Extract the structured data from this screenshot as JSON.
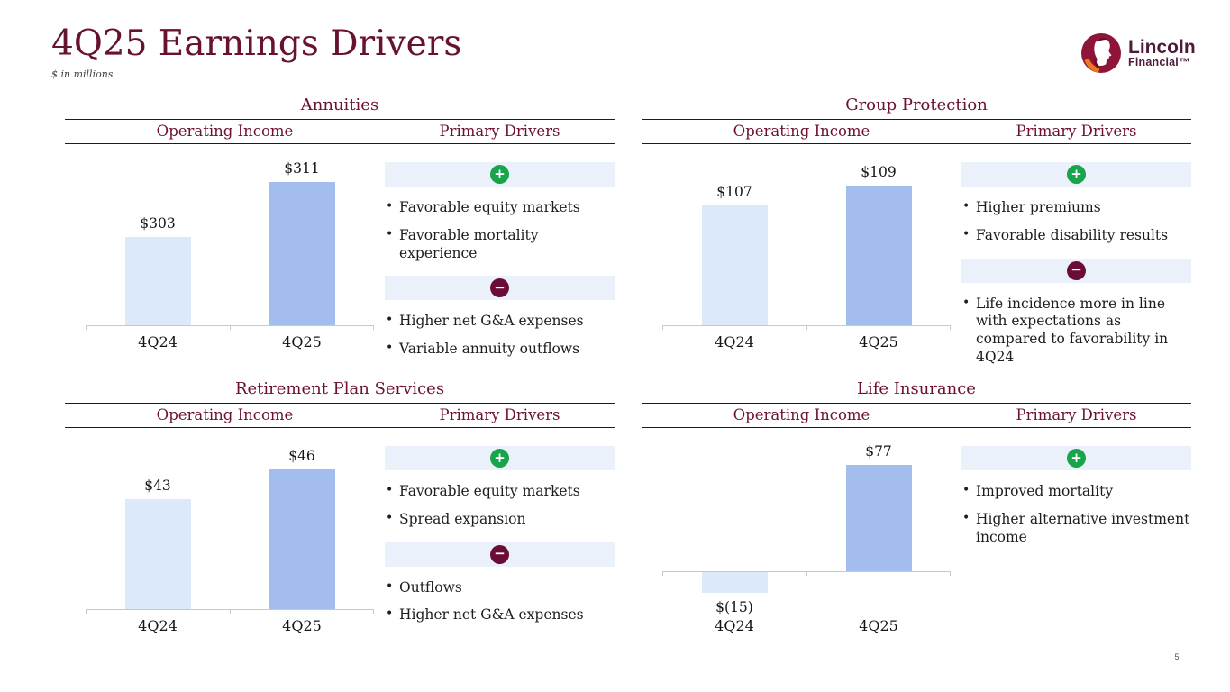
{
  "slide": {
    "title": "4Q25 Earnings Drivers",
    "subtitle": "$ in millions",
    "page_number": "5",
    "logo": {
      "line1": "Lincoln",
      "line2": "Financial™"
    }
  },
  "icons": {
    "plus": "+",
    "minus": "−"
  },
  "colors": {
    "maroon_text": "#6d1034",
    "rule_line": "#35101f",
    "bar_light": "#dbe9fa",
    "bar_dark": "#a2bdee",
    "band_bg": "#eaf1fb",
    "plus_green": "#17a44a",
    "minus_maroon": "#6b0c35",
    "axis_gray": "#c9c9c9"
  },
  "chart_data": [
    {
      "type": "bar",
      "section": "Annuities",
      "title": "Operating Income",
      "categories": [
        "4Q24",
        "4Q25"
      ],
      "values": [
        303,
        311
      ],
      "labels": [
        "$303",
        "$311"
      ],
      "ylim": [
        290,
        315
      ],
      "bar_colors": [
        "#dbe9fa",
        "#a2bdee"
      ],
      "grid": false,
      "legend": false
    },
    {
      "type": "bar",
      "section": "Group Protection",
      "title": "Operating Income",
      "categories": [
        "4Q24",
        "4Q25"
      ],
      "values": [
        107,
        109
      ],
      "labels": [
        "$107",
        "$109"
      ],
      "ylim": [
        95,
        112
      ],
      "bar_colors": [
        "#dbe9fa",
        "#a2bdee"
      ],
      "grid": false,
      "legend": false
    },
    {
      "type": "bar",
      "section": "Retirement Plan Services",
      "title": "Operating Income",
      "categories": [
        "4Q24",
        "4Q25"
      ],
      "values": [
        43,
        46
      ],
      "labels": [
        "$43",
        "$46"
      ],
      "ylim": [
        32,
        49
      ],
      "bar_colors": [
        "#dbe9fa",
        "#a2bdee"
      ],
      "grid": false,
      "legend": false
    },
    {
      "type": "bar",
      "section": "Life Insurance",
      "title": "Operating Income",
      "categories": [
        "4Q24",
        "4Q25"
      ],
      "values": [
        -15,
        77
      ],
      "labels": [
        "$(15)",
        "$77"
      ],
      "ylim": [
        -28,
        96
      ],
      "bar_colors": [
        "#dbe9fa",
        "#a2bdee"
      ],
      "grid": false,
      "legend": false
    }
  ],
  "sections": [
    {
      "title": "Annuities",
      "operating_income_header": "Operating Income",
      "primary_drivers_header": "Primary Drivers",
      "drivers": [
        {
          "type": "positive",
          "bullets": [
            "Favorable equity markets",
            "Favorable mortality experience"
          ]
        },
        {
          "type": "negative",
          "bullets": [
            "Higher net G&A expenses",
            "Variable annuity outflows"
          ]
        }
      ]
    },
    {
      "title": "Group Protection",
      "operating_income_header": "Operating Income",
      "primary_drivers_header": "Primary Drivers",
      "drivers": [
        {
          "type": "positive",
          "bullets": [
            "Higher premiums",
            "Favorable disability results"
          ]
        },
        {
          "type": "negative",
          "bullets": [
            "Life incidence more in line with expectations as compared to favorability in 4Q24"
          ]
        }
      ]
    },
    {
      "title": "Retirement Plan Services",
      "operating_income_header": "Operating Income",
      "primary_drivers_header": "Primary Drivers",
      "drivers": [
        {
          "type": "positive",
          "bullets": [
            "Favorable equity markets",
            "Spread expansion"
          ]
        },
        {
          "type": "negative",
          "bullets": [
            "Outflows",
            "Higher net G&A expenses"
          ]
        }
      ]
    },
    {
      "title": "Life Insurance",
      "operating_income_header": "Operating Income",
      "primary_drivers_header": "Primary Drivers",
      "drivers": [
        {
          "type": "positive",
          "bullets": [
            "Improved mortality",
            "Higher alternative investment income"
          ]
        }
      ]
    }
  ]
}
